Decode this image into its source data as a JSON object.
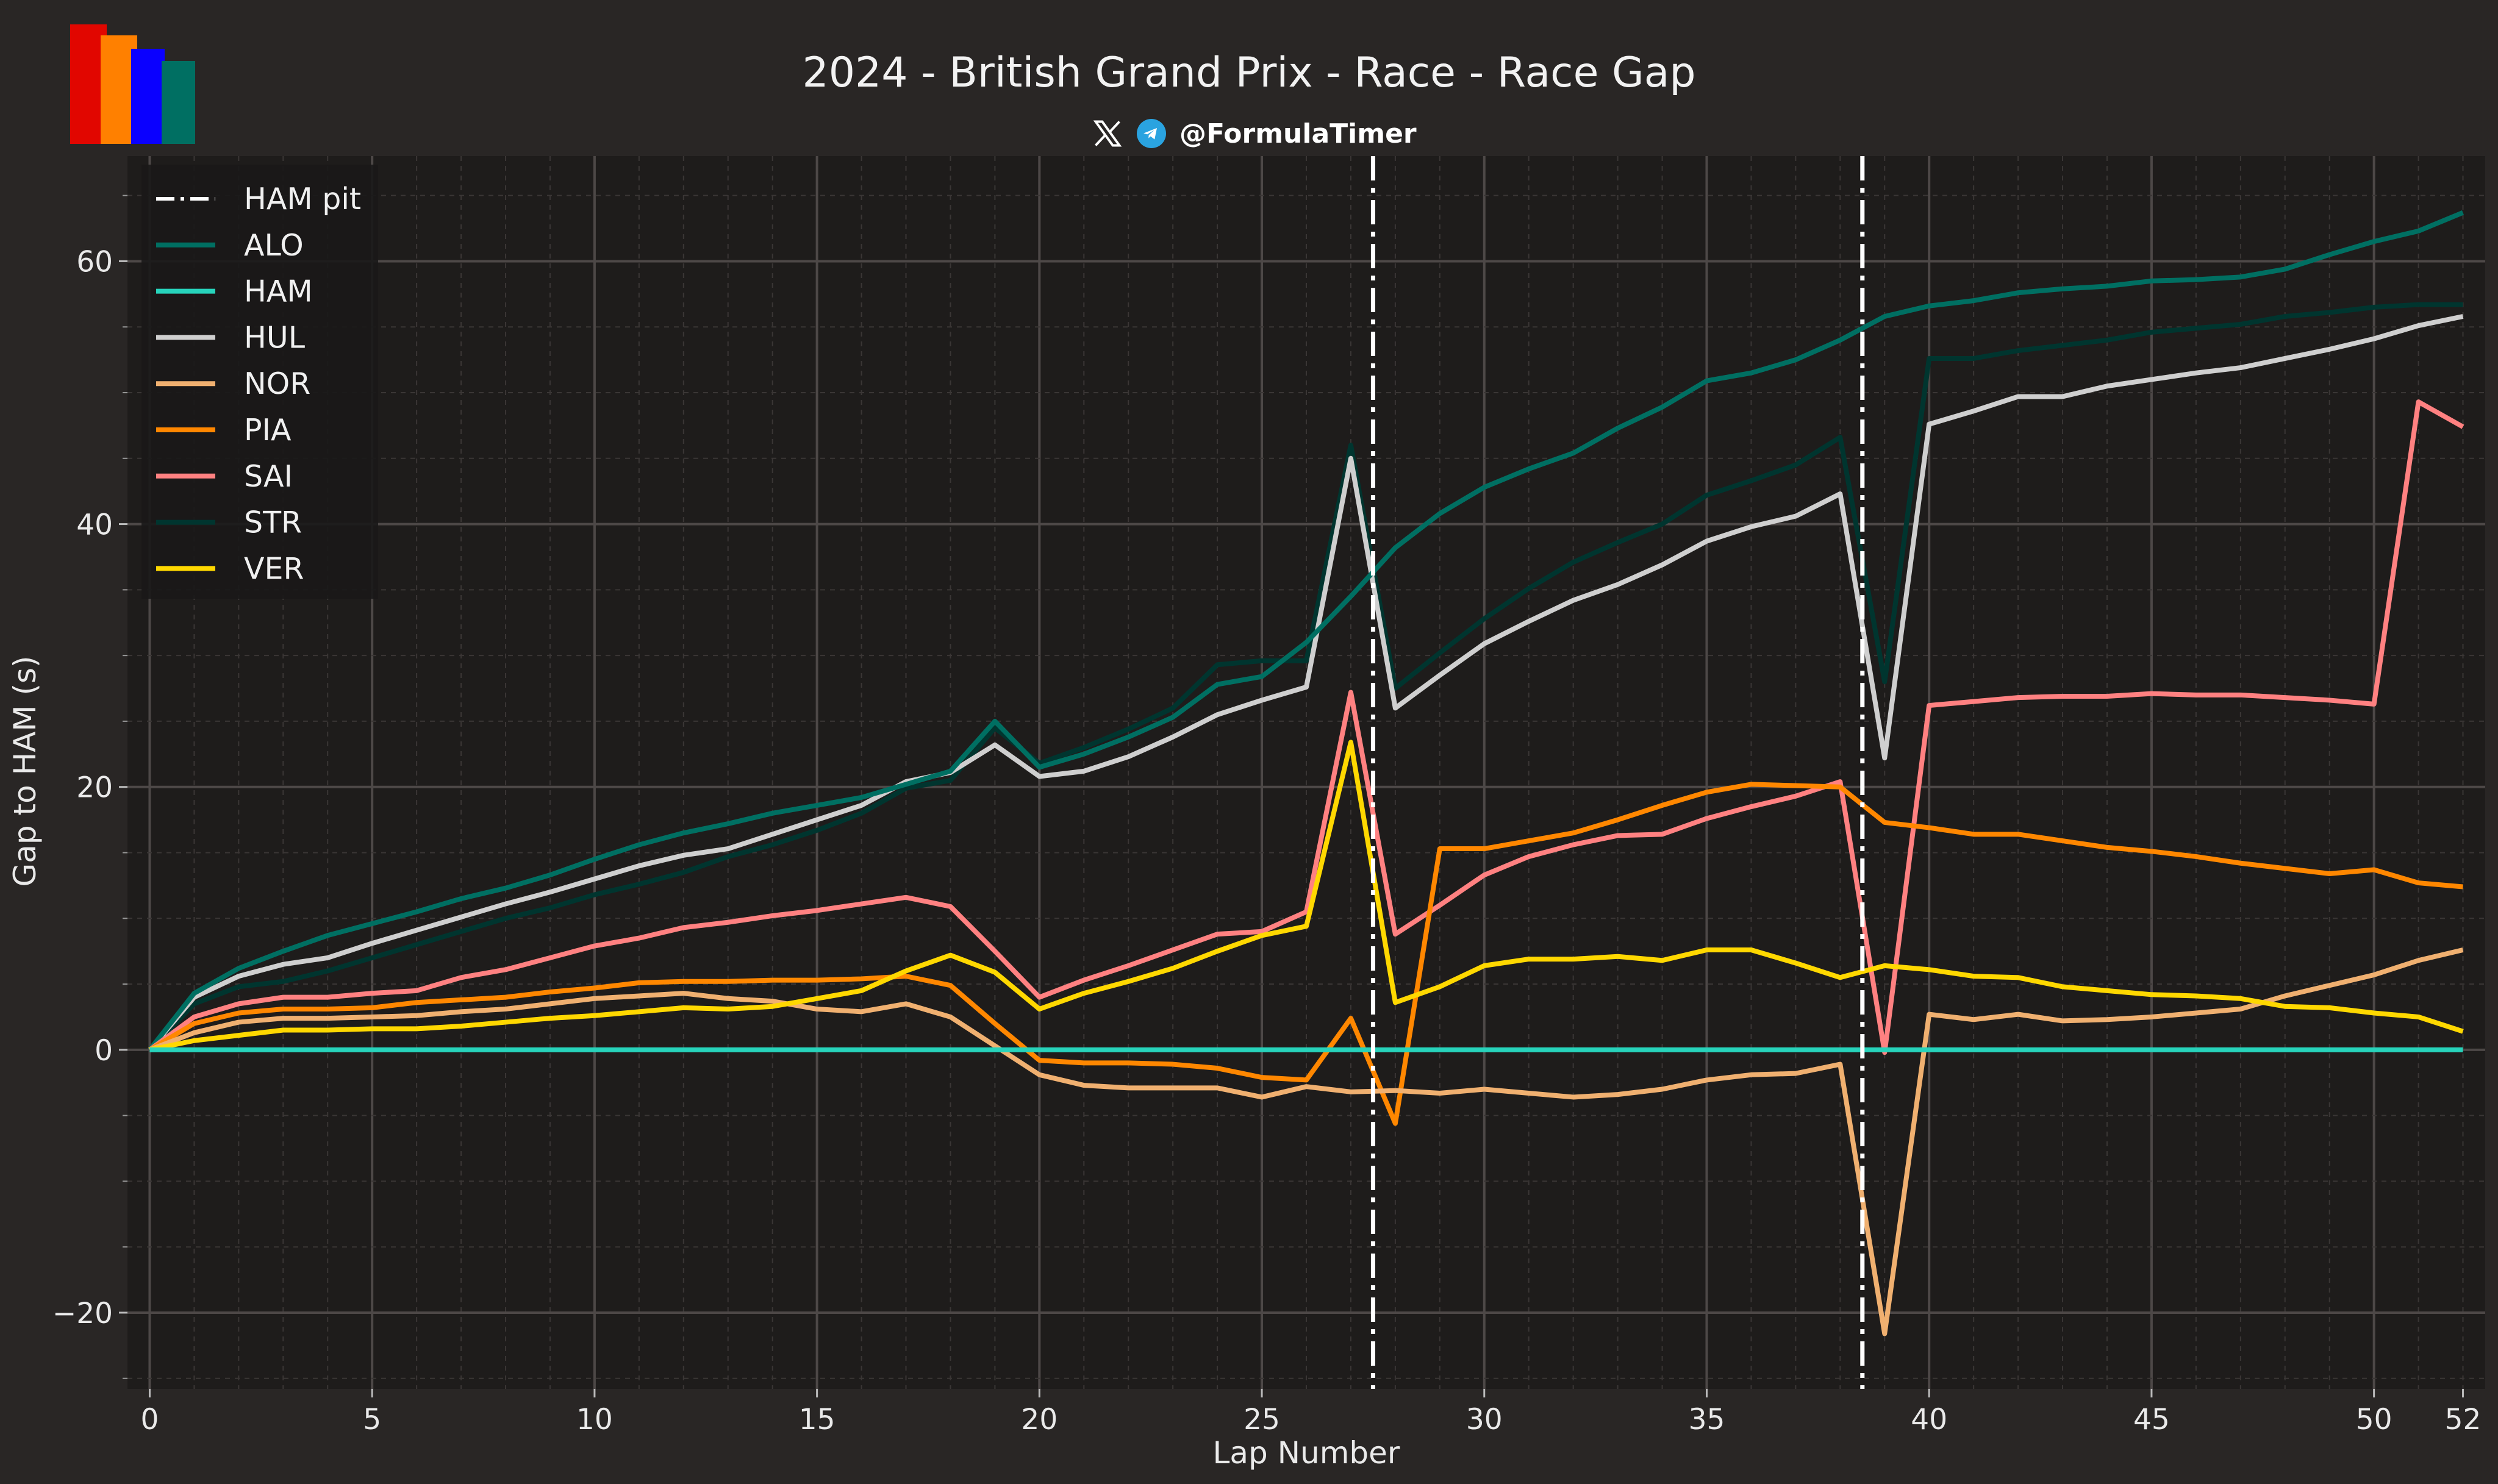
{
  "header": {
    "title": "2024 - British Grand Prix - Race - Race Gap",
    "handle": "@FormulaTimer",
    "icons": [
      "x-logo-icon",
      "telegram-icon"
    ]
  },
  "logo_colors": [
    "#e10600",
    "#ff8000",
    "#0a00ff",
    "#006f62"
  ],
  "chart_data": {
    "type": "line",
    "title": "2024 - British Grand Prix - Race - Race Gap",
    "xlabel": "Lap Number",
    "ylabel": "Gap to HAM (s)",
    "xlim": [
      -0.5,
      52.5
    ],
    "ylim": [
      -25.8,
      68
    ],
    "xticks": [
      0,
      5,
      10,
      15,
      20,
      25,
      30,
      35,
      40,
      45,
      50,
      52
    ],
    "yticks": [
      -20,
      0,
      20,
      40,
      60
    ],
    "ytick_labels": [
      "−20",
      "0",
      "20",
      "40",
      "60"
    ],
    "grid": true,
    "legend_position": "top-left",
    "pit_lines": {
      "name": "HAM pit",
      "x": [
        27.5,
        38.5
      ],
      "color": "#ffffff"
    },
    "x": [
      0,
      1,
      2,
      3,
      4,
      5,
      6,
      7,
      8,
      9,
      10,
      11,
      12,
      13,
      14,
      15,
      16,
      17,
      18,
      19,
      20,
      21,
      22,
      23,
      24,
      25,
      26,
      27,
      28,
      29,
      30,
      31,
      32,
      33,
      34,
      35,
      36,
      37,
      38,
      39,
      40,
      41,
      42,
      43,
      44,
      45,
      46,
      47,
      48,
      49,
      50,
      51,
      52
    ],
    "series": [
      {
        "name": "ALO",
        "color": "#006f62",
        "values": [
          0,
          4.3,
          6.2,
          7.5,
          8.7,
          9.6,
          10.5,
          11.5,
          12.3,
          13.3,
          14.5,
          15.6,
          16.5,
          17.2,
          18,
          18.6,
          19.2,
          20.2,
          21.2,
          25,
          21.5,
          22.5,
          23.8,
          25.3,
          27.8,
          28.4,
          31,
          34.5,
          38.2,
          40.8,
          42.8,
          44.2,
          45.4,
          47.3,
          48.9,
          50.9,
          51.5,
          52.5,
          54,
          55.8,
          56.6,
          57,
          57.6,
          57.9,
          58.1,
          58.5,
          58.6,
          58.8,
          59.4,
          60.5,
          61.5,
          62.3,
          63.7
        ]
      },
      {
        "name": "HAM",
        "color": "#27d3bb",
        "values": [
          0,
          0,
          0,
          0,
          0,
          0,
          0,
          0,
          0,
          0,
          0,
          0,
          0,
          0,
          0,
          0,
          0,
          0,
          0,
          0,
          0,
          0,
          0,
          0,
          0,
          0,
          0,
          0,
          0,
          0,
          0,
          0,
          0,
          0,
          0,
          0,
          0,
          0,
          0,
          0,
          0,
          0,
          0,
          0,
          0,
          0,
          0,
          0,
          0,
          0,
          0,
          0,
          0
        ]
      },
      {
        "name": "HUL",
        "color": "#cfcfcf",
        "values": [
          0,
          4,
          5.6,
          6.5,
          7,
          8.1,
          9.1,
          10.1,
          11.1,
          12,
          13,
          14,
          14.8,
          15.3,
          16.4,
          17.5,
          18.6,
          20.4,
          21.1,
          23.2,
          20.8,
          21.2,
          22.3,
          23.8,
          25.5,
          26.6,
          27.6,
          45,
          26,
          28.5,
          30.9,
          32.6,
          34.2,
          35.4,
          36.9,
          38.7,
          39.8,
          40.6,
          42.3,
          22.2,
          47.6,
          48.6,
          49.7,
          49.7,
          50.5,
          51,
          51.5,
          51.9,
          52.6,
          53.3,
          54.1,
          55.1,
          55.8
        ]
      },
      {
        "name": "NOR",
        "color": "#f0b070",
        "values": [
          0,
          1.3,
          2.1,
          2.4,
          2.4,
          2.5,
          2.6,
          2.9,
          3.1,
          3.5,
          3.9,
          4.1,
          4.3,
          3.9,
          3.7,
          3.1,
          2.9,
          3.5,
          2.5,
          0.3,
          -1.9,
          -2.7,
          -2.9,
          -2.9,
          -2.9,
          -3.6,
          -2.8,
          -3.2,
          -3.1,
          -3.3,
          -3,
          -3.3,
          -3.6,
          -3.4,
          -3,
          -2.3,
          -1.9,
          -1.8,
          -1.1,
          -21.6,
          2.7,
          2.3,
          2.7,
          2.2,
          2.3,
          2.5,
          2.8,
          3.1,
          4.1,
          4.9,
          5.7,
          6.8,
          7.6
        ]
      },
      {
        "name": "PIA",
        "color": "#ff8700",
        "values": [
          0,
          2,
          2.8,
          3.1,
          3.1,
          3.2,
          3.6,
          3.8,
          4,
          4.4,
          4.7,
          5.1,
          5.2,
          5.2,
          5.3,
          5.3,
          5.4,
          5.6,
          4.9,
          2,
          -0.8,
          -1,
          -1,
          -1.1,
          -1.4,
          -2.1,
          -2.3,
          2.4,
          -5.6,
          15.3,
          15.3,
          15.9,
          16.5,
          17.5,
          18.6,
          19.6,
          20.2,
          20.1,
          20,
          17.3,
          16.9,
          16.4,
          16.4,
          15.9,
          15.4,
          15.1,
          14.7,
          14.2,
          13.8,
          13.4,
          13.7,
          12.7,
          12.4
        ]
      },
      {
        "name": "SAI",
        "color": "#ff8181",
        "values": [
          0,
          2.5,
          3.5,
          4,
          4,
          4.3,
          4.5,
          5.5,
          6.1,
          7,
          7.9,
          8.5,
          9.3,
          9.7,
          10.2,
          10.6,
          11.1,
          11.6,
          10.9,
          7.5,
          4,
          5.3,
          6.4,
          7.6,
          8.8,
          9,
          10.5,
          27.2,
          8.8,
          11,
          13.3,
          14.7,
          15.6,
          16.3,
          16.4,
          17.6,
          18.5,
          19.3,
          20.4,
          -0.2,
          26.2,
          26.5,
          26.8,
          26.9,
          26.9,
          27.1,
          27,
          27,
          26.8,
          26.6,
          26.3,
          49.3,
          47.4
        ]
      },
      {
        "name": "STR",
        "color": "#00352f",
        "values": [
          0,
          3.5,
          4.8,
          5.2,
          6,
          7,
          8,
          9,
          10,
          10.8,
          11.8,
          12.6,
          13.5,
          14.7,
          15.6,
          16.7,
          18,
          19.9,
          20.5,
          24.5,
          21.8,
          23,
          24.4,
          26,
          29.3,
          29.6,
          29.6,
          46,
          27.5,
          30.2,
          32.8,
          35.1,
          37.1,
          38.6,
          40,
          42.2,
          43.3,
          44.5,
          46.6,
          28,
          52.6,
          52.6,
          53.2,
          53.6,
          54,
          54.6,
          54.9,
          55.2,
          55.8,
          56.1,
          56.5,
          56.7,
          56.7
        ]
      },
      {
        "name": "VER",
        "color": "#ffd800",
        "values": [
          0,
          0.7,
          1.1,
          1.5,
          1.5,
          1.6,
          1.6,
          1.8,
          2.1,
          2.4,
          2.6,
          2.9,
          3.2,
          3.1,
          3.3,
          3.9,
          4.5,
          6,
          7.2,
          5.9,
          3.1,
          4.3,
          5.2,
          6.2,
          7.5,
          8.7,
          9.4,
          23.4,
          3.6,
          4.8,
          6.4,
          6.9,
          6.9,
          7.1,
          6.8,
          7.6,
          7.6,
          6.6,
          5.5,
          6.4,
          6.1,
          5.6,
          5.5,
          4.8,
          4.5,
          4.2,
          4.1,
          3.9,
          3.3,
          3.2,
          2.8,
          2.5,
          1.4
        ]
      }
    ]
  }
}
